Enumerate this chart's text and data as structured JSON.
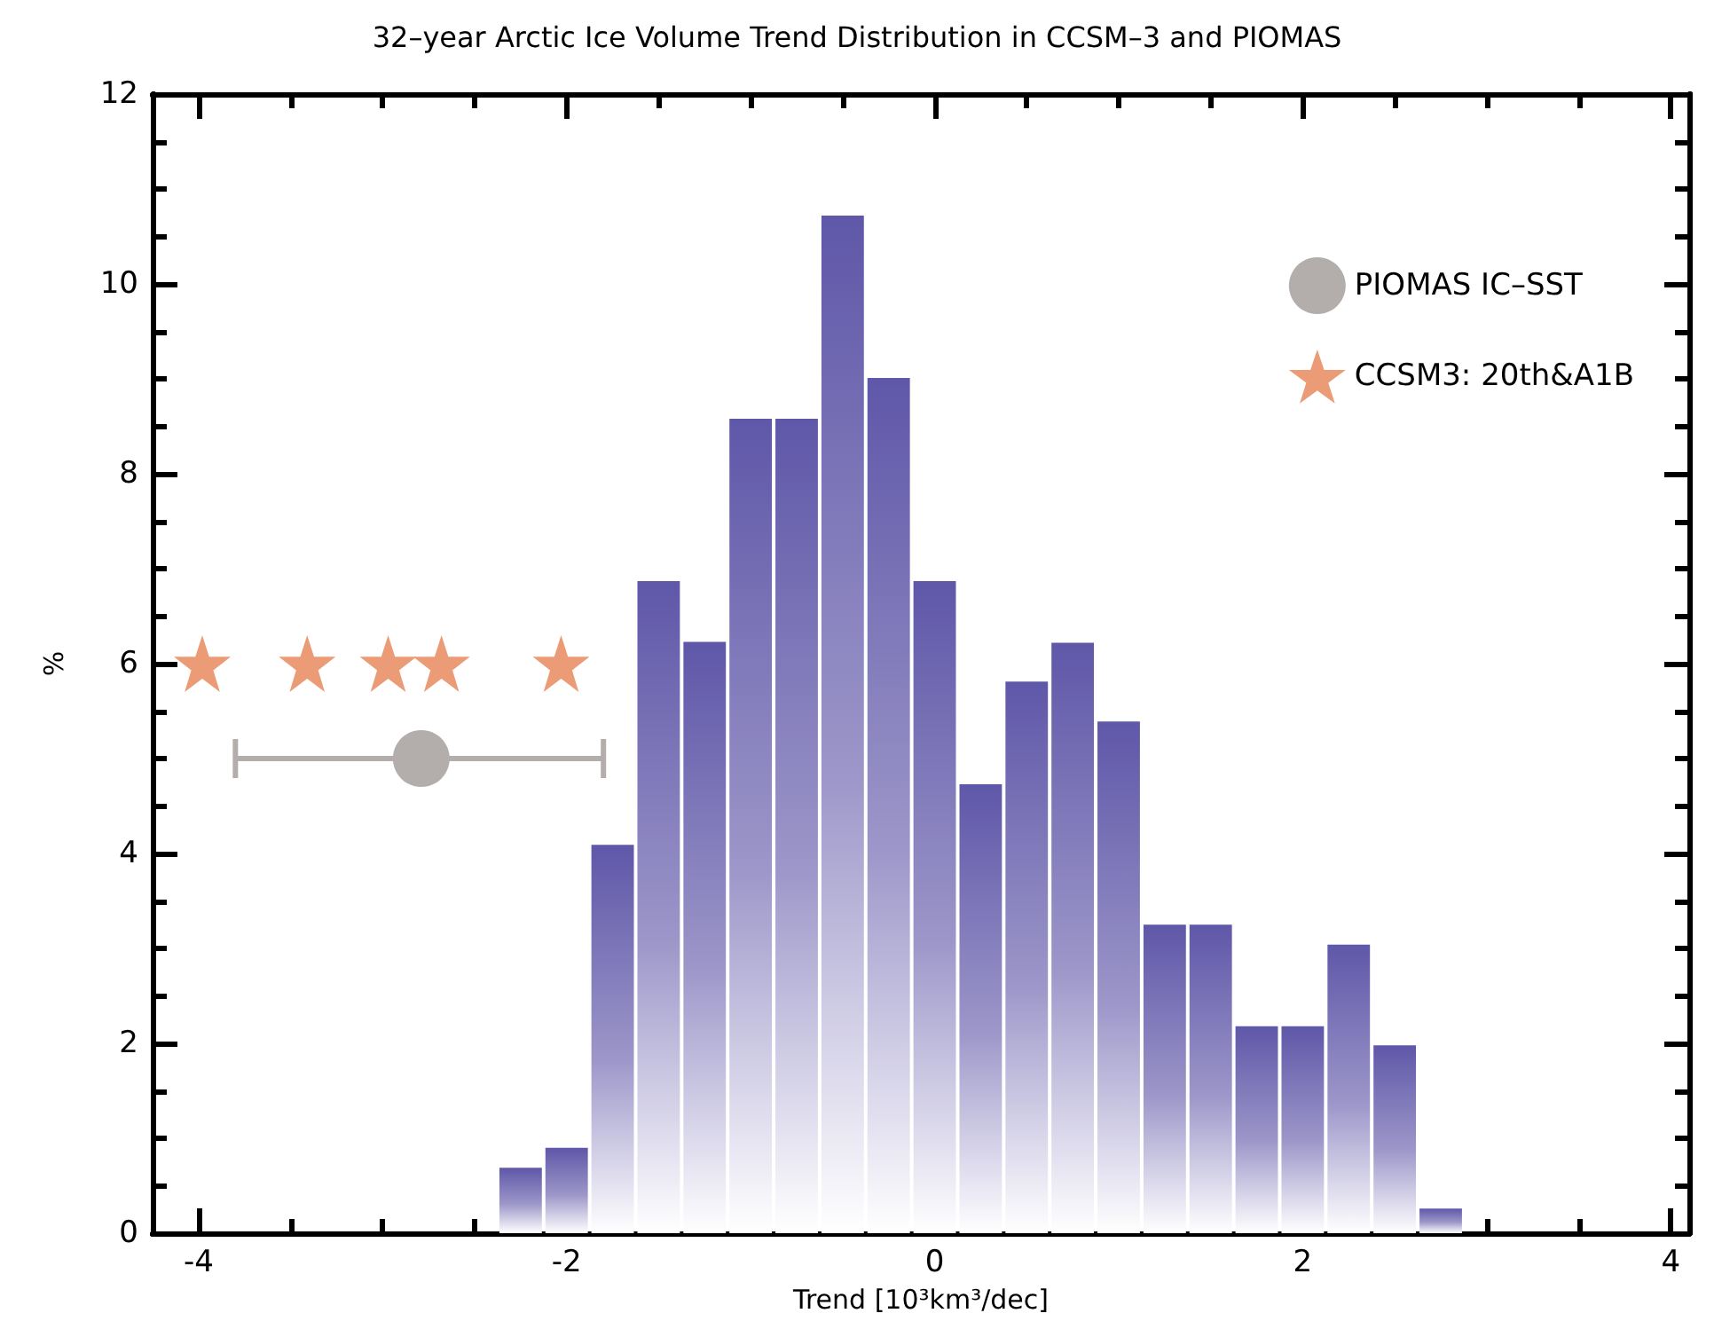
{
  "chart_data": {
    "type": "histogram",
    "title": "32–year Arctic Ice Volume Trend Distribution in CCSM–3 and PIOMAS",
    "xlabel": "Trend [10³km³/dec]",
    "ylabel": "%",
    "bins": [
      -2.375,
      -2.125,
      -1.875,
      -1.625,
      -1.375,
      -1.125,
      -0.875,
      -0.625,
      -0.375,
      -0.125,
      0.125,
      0.375,
      0.625,
      0.875,
      1.125,
      1.375,
      1.625,
      1.875,
      2.125,
      2.375,
      2.625,
      2.875
    ],
    "values": [
      0.69,
      0.9,
      4.09,
      6.87,
      6.23,
      8.58,
      8.58,
      10.72,
      9.01,
      6.87,
      4.73,
      5.81,
      6.22,
      5.39,
      3.25,
      3.25,
      2.18,
      2.18,
      3.04,
      1.98,
      0.26
    ],
    "color": "#5f57a8",
    "series": [
      {
        "name": "PIOMAS IC–SST",
        "type": "scatter",
        "marker": "circle",
        "color": "#b3aeac",
        "x": [
          -2.79
        ],
        "values": [
          5
        ],
        "xerrors": [
          [
            -3.8,
            -1.8
          ]
        ]
      },
      {
        "name": "CCSM3: 20th&A1B",
        "type": "scatter",
        "marker": "star",
        "color": "#eb9b75",
        "x": [
          -3.98,
          -3.41,
          -2.97,
          -2.68,
          -2.03
        ],
        "values": [
          6,
          6,
          6,
          6,
          6
        ]
      }
    ],
    "xlim": [
      -4.25,
      4.1
    ],
    "xticks": [
      -4,
      {
        "value": -3.5,
        "label": null
      },
      {
        "value": -3,
        "label": null
      },
      {
        "value": -2.5,
        "label": null
      },
      -2,
      {
        "value": -1.5,
        "label": null
      },
      {
        "value": -1,
        "label": null
      },
      {
        "value": -0.5,
        "label": null
      },
      0,
      {
        "value": 0.5,
        "label": null
      },
      {
        "value": 1,
        "label": null
      },
      {
        "value": 1.5,
        "label": null
      },
      2,
      {
        "value": 2.5,
        "label": null
      },
      {
        "value": 3,
        "label": null
      },
      {
        "value": 3.5,
        "label": null
      },
      4
    ],
    "ylim": [
      0,
      12
    ],
    "yticks": [
      0,
      {
        "value": 0.5,
        "label": null
      },
      {
        "value": 1,
        "label": null
      },
      {
        "value": 1.5,
        "label": null
      },
      2,
      {
        "value": 2.5,
        "label": null
      },
      {
        "value": 3,
        "label": null
      },
      {
        "value": 3.5,
        "label": null
      },
      4,
      {
        "value": 4.5,
        "label": null
      },
      {
        "value": 5,
        "label": null
      },
      {
        "value": 5.5,
        "label": null
      },
      6,
      {
        "value": 6.5,
        "label": null
      },
      {
        "value": 7,
        "label": null
      },
      {
        "value": 7.5,
        "label": null
      },
      8,
      {
        "value": 8.5,
        "label": null
      },
      {
        "value": 9,
        "label": null
      },
      {
        "value": 9.5,
        "label": null
      },
      10,
      {
        "value": 10.5,
        "label": null
      },
      {
        "value": 11,
        "label": null
      },
      {
        "value": 11.5,
        "label": null
      },
      12
    ],
    "legend": "top right"
  }
}
